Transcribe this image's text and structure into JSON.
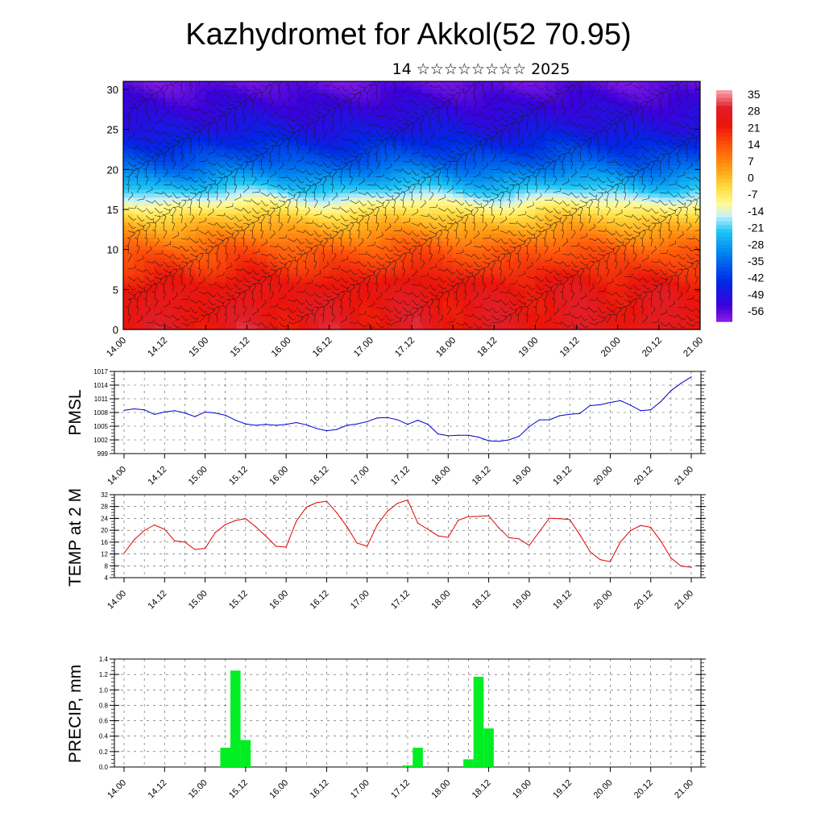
{
  "title": "Kazhydromet for Akkol(52 70.95)",
  "subtitle": "14 ☆☆☆☆☆☆☆☆ 2025",
  "colors": {
    "pmsl_line": "#0000cc",
    "temp_line": "#dd0000",
    "precip_bar": "#00ee22",
    "grid": "#555555"
  },
  "time_ticks": [
    "14.00",
    "14.12",
    "15.00",
    "15.12",
    "16.00",
    "16.12",
    "17.00",
    "17.12",
    "18.00",
    "18.12",
    "19.00",
    "19.12",
    "20.00",
    "20.12",
    "21.00"
  ],
  "chart_data": [
    {
      "type": "heatmap",
      "name": "cross-section",
      "yticks": [
        "0",
        "5",
        "10",
        "15",
        "20",
        "25",
        "30"
      ],
      "ylim": [
        0,
        31
      ],
      "colorbar_labels": [
        "35",
        "28",
        "21",
        "14",
        "7",
        "0",
        "-7",
        "-14",
        "-21",
        "-28",
        "-35",
        "-42",
        "-49",
        "-56"
      ],
      "colorbar_range": [
        -63,
        42
      ],
      "temperature_profile_by_level": [
        {
          "level": 0,
          "value": 30
        },
        {
          "level": 5,
          "value": 28
        },
        {
          "level": 10,
          "value": 16
        },
        {
          "level": 14,
          "value": 0
        },
        {
          "level": 16,
          "value": -12
        },
        {
          "level": 18,
          "value": -24
        },
        {
          "level": 21,
          "value": -38
        },
        {
          "level": 25,
          "value": -50
        },
        {
          "level": 28,
          "value": -55
        },
        {
          "level": 31,
          "value": -60
        }
      ]
    },
    {
      "type": "line",
      "ylabel": "PMSL",
      "ylim": [
        999,
        1017
      ],
      "yticks": [
        "1017",
        "1014",
        "1011",
        "1008",
        "1005",
        "1002",
        "999"
      ],
      "x_step_hours": 3,
      "values": [
        1008.5,
        1008.8,
        1008.6,
        1007.6,
        1008.1,
        1008.4,
        1007.9,
        1007.1,
        1008.1,
        1007.9,
        1007.4,
        1006.3,
        1005.5,
        1005.2,
        1005.4,
        1005.2,
        1005.4,
        1005.8,
        1005.3,
        1004.5,
        1004.0,
        1004.3,
        1005.2,
        1005.5,
        1006.0,
        1006.8,
        1006.9,
        1006.4,
        1005.4,
        1006.3,
        1005.4,
        1003.3,
        1002.9,
        1003.0,
        1003.0,
        1002.6,
        1001.8,
        1001.7,
        1002.0,
        1002.8,
        1004.9,
        1006.4,
        1006.4,
        1007.3,
        1007.6,
        1007.8,
        1009.5,
        1009.7,
        1010.2,
        1010.6,
        1009.6,
        1008.4,
        1008.6,
        1010.4,
        1012.8,
        1014.4,
        1015.8
      ]
    },
    {
      "type": "line",
      "ylabel": "TEMP at 2 M",
      "ylim": [
        4,
        32
      ],
      "yticks": [
        "32",
        "28",
        "24",
        "20",
        "16",
        "12",
        "8",
        "4"
      ],
      "x_step_hours": 3,
      "values": [
        12.3,
        16.8,
        19.9,
        21.8,
        20.3,
        16.4,
        16.0,
        13.5,
        13.9,
        19.2,
        21.9,
        23.3,
        23.9,
        21.2,
        18.0,
        14.6,
        14.3,
        23.0,
        27.8,
        29.3,
        29.8,
        25.9,
        21.2,
        15.7,
        14.6,
        21.9,
        26.4,
        29.1,
        30.2,
        22.4,
        20.3,
        18.1,
        17.6,
        23.4,
        24.6,
        24.7,
        24.9,
        20.8,
        17.5,
        17.1,
        14.9,
        19.5,
        24.1,
        23.9,
        23.6,
        18.5,
        12.8,
        10.1,
        9.4,
        16.0,
        19.9,
        21.6,
        21.0,
        16.3,
        10.6,
        7.9,
        7.5
      ]
    },
    {
      "type": "bar",
      "ylabel": "PRECIP, mm",
      "ylim": [
        0,
        1.4
      ],
      "yticks": [
        "1.4",
        "1.2",
        "1.0",
        "0.8",
        "0.6",
        "0.4",
        "0.2",
        "0.0"
      ],
      "x_step_hours": 3,
      "values": [
        0,
        0,
        0,
        0,
        0,
        0,
        0,
        0,
        0,
        0,
        0.25,
        1.25,
        0.35,
        0,
        0,
        0,
        0,
        0,
        0,
        0,
        0,
        0,
        0,
        0,
        0,
        0,
        0,
        0,
        0.02,
        0.25,
        0,
        0,
        0,
        0,
        0.1,
        1.17,
        0.5,
        0,
        0,
        0,
        0,
        0,
        0,
        0,
        0,
        0,
        0,
        0,
        0,
        0,
        0,
        0,
        0,
        0,
        0,
        0,
        0
      ]
    }
  ]
}
